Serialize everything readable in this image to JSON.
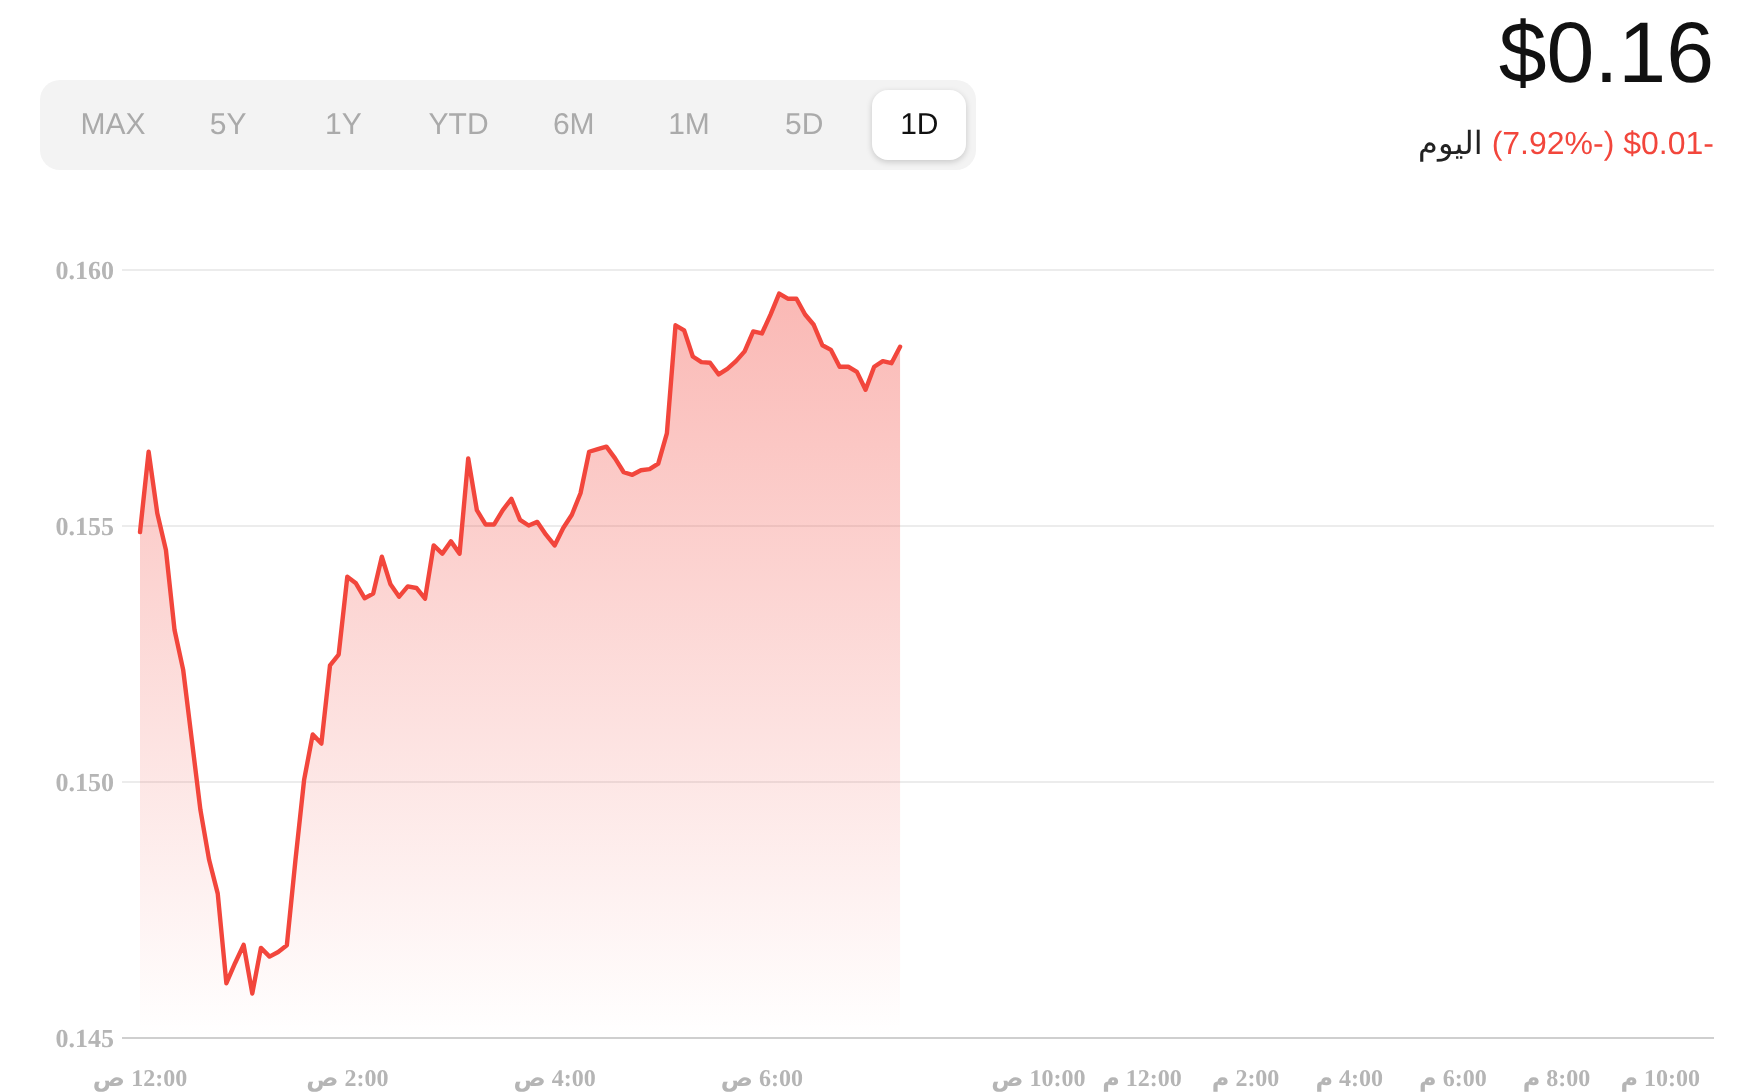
{
  "chart_data": {
    "type": "area",
    "title": "$0.16",
    "subtitle": "-$0.01 (-7.92%)",
    "annotations": [
      "MAX",
      "5Y",
      "1Y",
      "YTD",
      "6M",
      "1M",
      "5D",
      "1D",
      "اليوم"
    ],
    "categories": [
      "12:00 ص",
      null,
      null,
      null,
      null,
      null,
      null,
      null,
      null,
      null,
      null,
      null,
      null,
      null,
      null,
      null,
      null,
      null,
      null,
      null,
      null,
      null,
      null,
      null,
      "2:00 ص",
      null,
      null,
      null,
      null,
      null,
      null,
      null,
      null,
      null,
      null,
      null,
      null,
      null,
      null,
      null,
      null,
      null,
      null,
      null,
      null,
      null,
      null,
      null,
      "4:00 ص",
      null,
      null,
      null,
      null,
      null,
      null,
      null,
      null,
      null,
      null,
      null,
      null,
      null,
      null,
      null,
      null,
      null,
      null,
      null,
      null,
      null,
      null,
      null,
      "6:00 ص",
      null,
      null,
      null,
      null,
      null,
      null,
      null,
      null,
      null,
      null,
      null,
      null,
      null,
      null,
      null,
      null,
      null,
      null,
      null,
      null,
      null,
      null,
      null,
      null,
      null,
      null,
      null,
      null,
      null,
      null,
      null,
      "10:00 ص",
      null,
      null,
      null,
      null,
      null,
      null,
      null,
      null,
      null,
      null,
      null,
      "12:00 م",
      null,
      null,
      null,
      null,
      null,
      null,
      null,
      null,
      null,
      null,
      null,
      "2:00 م",
      null,
      null,
      null,
      null,
      null,
      null,
      null,
      null,
      null,
      null,
      null,
      "4:00 م",
      null,
      null,
      null,
      null,
      null,
      null,
      null,
      null,
      null,
      null,
      null,
      "6:00 م",
      null,
      null,
      null,
      null,
      null,
      null,
      null,
      null,
      null,
      null,
      null,
      "8:00 م",
      null,
      null,
      null,
      null,
      null,
      null,
      null,
      null,
      null,
      null,
      null,
      "10:00 م",
      null,
      null,
      null,
      null,
      null,
      null
    ],
    "series": [
      {
        "color": "#f2463c",
        "values": [
          0.15488,
          0.15645,
          0.15525,
          0.15453,
          0.15297,
          0.15219,
          0.15082,
          0.14945,
          0.14848,
          0.14782,
          0.14607,
          0.14646,
          0.14682,
          0.14587,
          0.14676,
          0.14659,
          0.14668,
          0.14681,
          0.14848,
          0.15004,
          0.15093,
          0.15075,
          0.15228,
          0.15249,
          0.15401,
          0.15388,
          0.15359,
          0.15368,
          0.1544,
          0.15386,
          0.15362,
          0.15382,
          0.15379,
          0.15358,
          0.15462,
          0.15446,
          0.1547,
          0.15446,
          0.15632,
          0.15531,
          0.15503,
          0.15503,
          0.15531,
          0.15553,
          0.15512,
          0.15501,
          0.15508,
          0.15483,
          0.15462,
          0.15496,
          0.15522,
          0.15564,
          0.15645,
          0.1565,
          0.15655,
          0.15632,
          0.15605,
          0.156,
          0.15609,
          0.15611,
          0.15622,
          0.15681,
          0.15892,
          0.15882,
          0.15831,
          0.1582,
          0.15819,
          0.15796,
          0.15807,
          0.15822,
          0.15841,
          0.1588,
          0.15876,
          0.15913,
          0.15954,
          0.15944,
          0.15944,
          0.15913,
          0.15893,
          0.15853,
          0.15844,
          0.15811,
          0.15811,
          0.15801,
          0.15766,
          0.15811,
          0.15822,
          0.15818,
          0.1585,
          null,
          null,
          null,
          null,
          null,
          null,
          null,
          null,
          null,
          null,
          null,
          null,
          null,
          null,
          null,
          null,
          null,
          null,
          null,
          null,
          null,
          null,
          null,
          null,
          null,
          null,
          null,
          null,
          null,
          null,
          null,
          null,
          null,
          null,
          null,
          null,
          null,
          null,
          null,
          null,
          null,
          null,
          null,
          null,
          null,
          null,
          null,
          null,
          null,
          null,
          null,
          null,
          null,
          null,
          null,
          null,
          null,
          null,
          null,
          null,
          null,
          null,
          null,
          null,
          null,
          null,
          null,
          null,
          null,
          null,
          null,
          null,
          null,
          null,
          null,
          null,
          null,
          null,
          null,
          null,
          null,
          null,
          null,
          null,
          null,
          null,
          null,
          null,
          null,
          null,
          null,
          null,
          null,
          null
        ]
      }
    ],
    "ylim": [
      0.145,
      0.16
    ],
    "yticks": [
      0.145,
      {
        "value": 0.15,
        "label": "0.150"
      },
      0.155,
      {
        "value": 0.16,
        "label": "0.160"
      }
    ],
    "grid": "y"
  }
}
